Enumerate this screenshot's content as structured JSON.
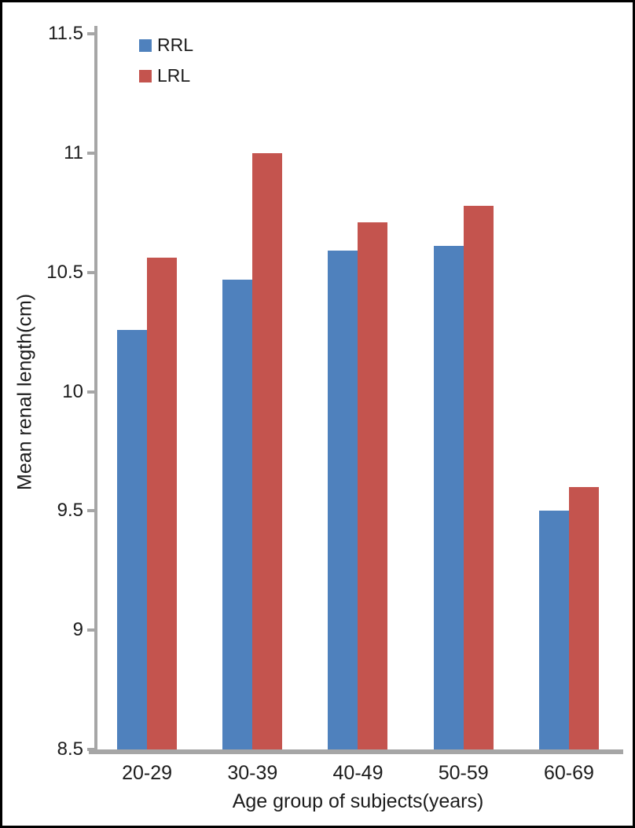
{
  "chart_data": {
    "type": "bar",
    "categories": [
      "20-29",
      "30-39",
      "40-49",
      "50-59",
      "60-69"
    ],
    "series": [
      {
        "name": "RRL",
        "color": "#4f81bd",
        "values": [
          10.26,
          10.47,
          10.59,
          10.61,
          9.5
        ]
      },
      {
        "name": "LRL",
        "color": "#c4544e",
        "values": [
          10.56,
          11.0,
          10.71,
          10.78,
          9.6
        ]
      }
    ],
    "xlabel": "Age group of subjects(years)",
    "ylabel": "Mean renal length(cm)",
    "ylim": [
      8.5,
      11.5
    ],
    "yticks": [
      8.5,
      9,
      9.5,
      10,
      10.5,
      11,
      11.5
    ],
    "grid": false,
    "legend_position": "top-left-inside",
    "axis_color": "#a6a6a6",
    "text_color": "#1c1c1c",
    "background_color": "#ffffff",
    "frame_color": "#000000"
  }
}
